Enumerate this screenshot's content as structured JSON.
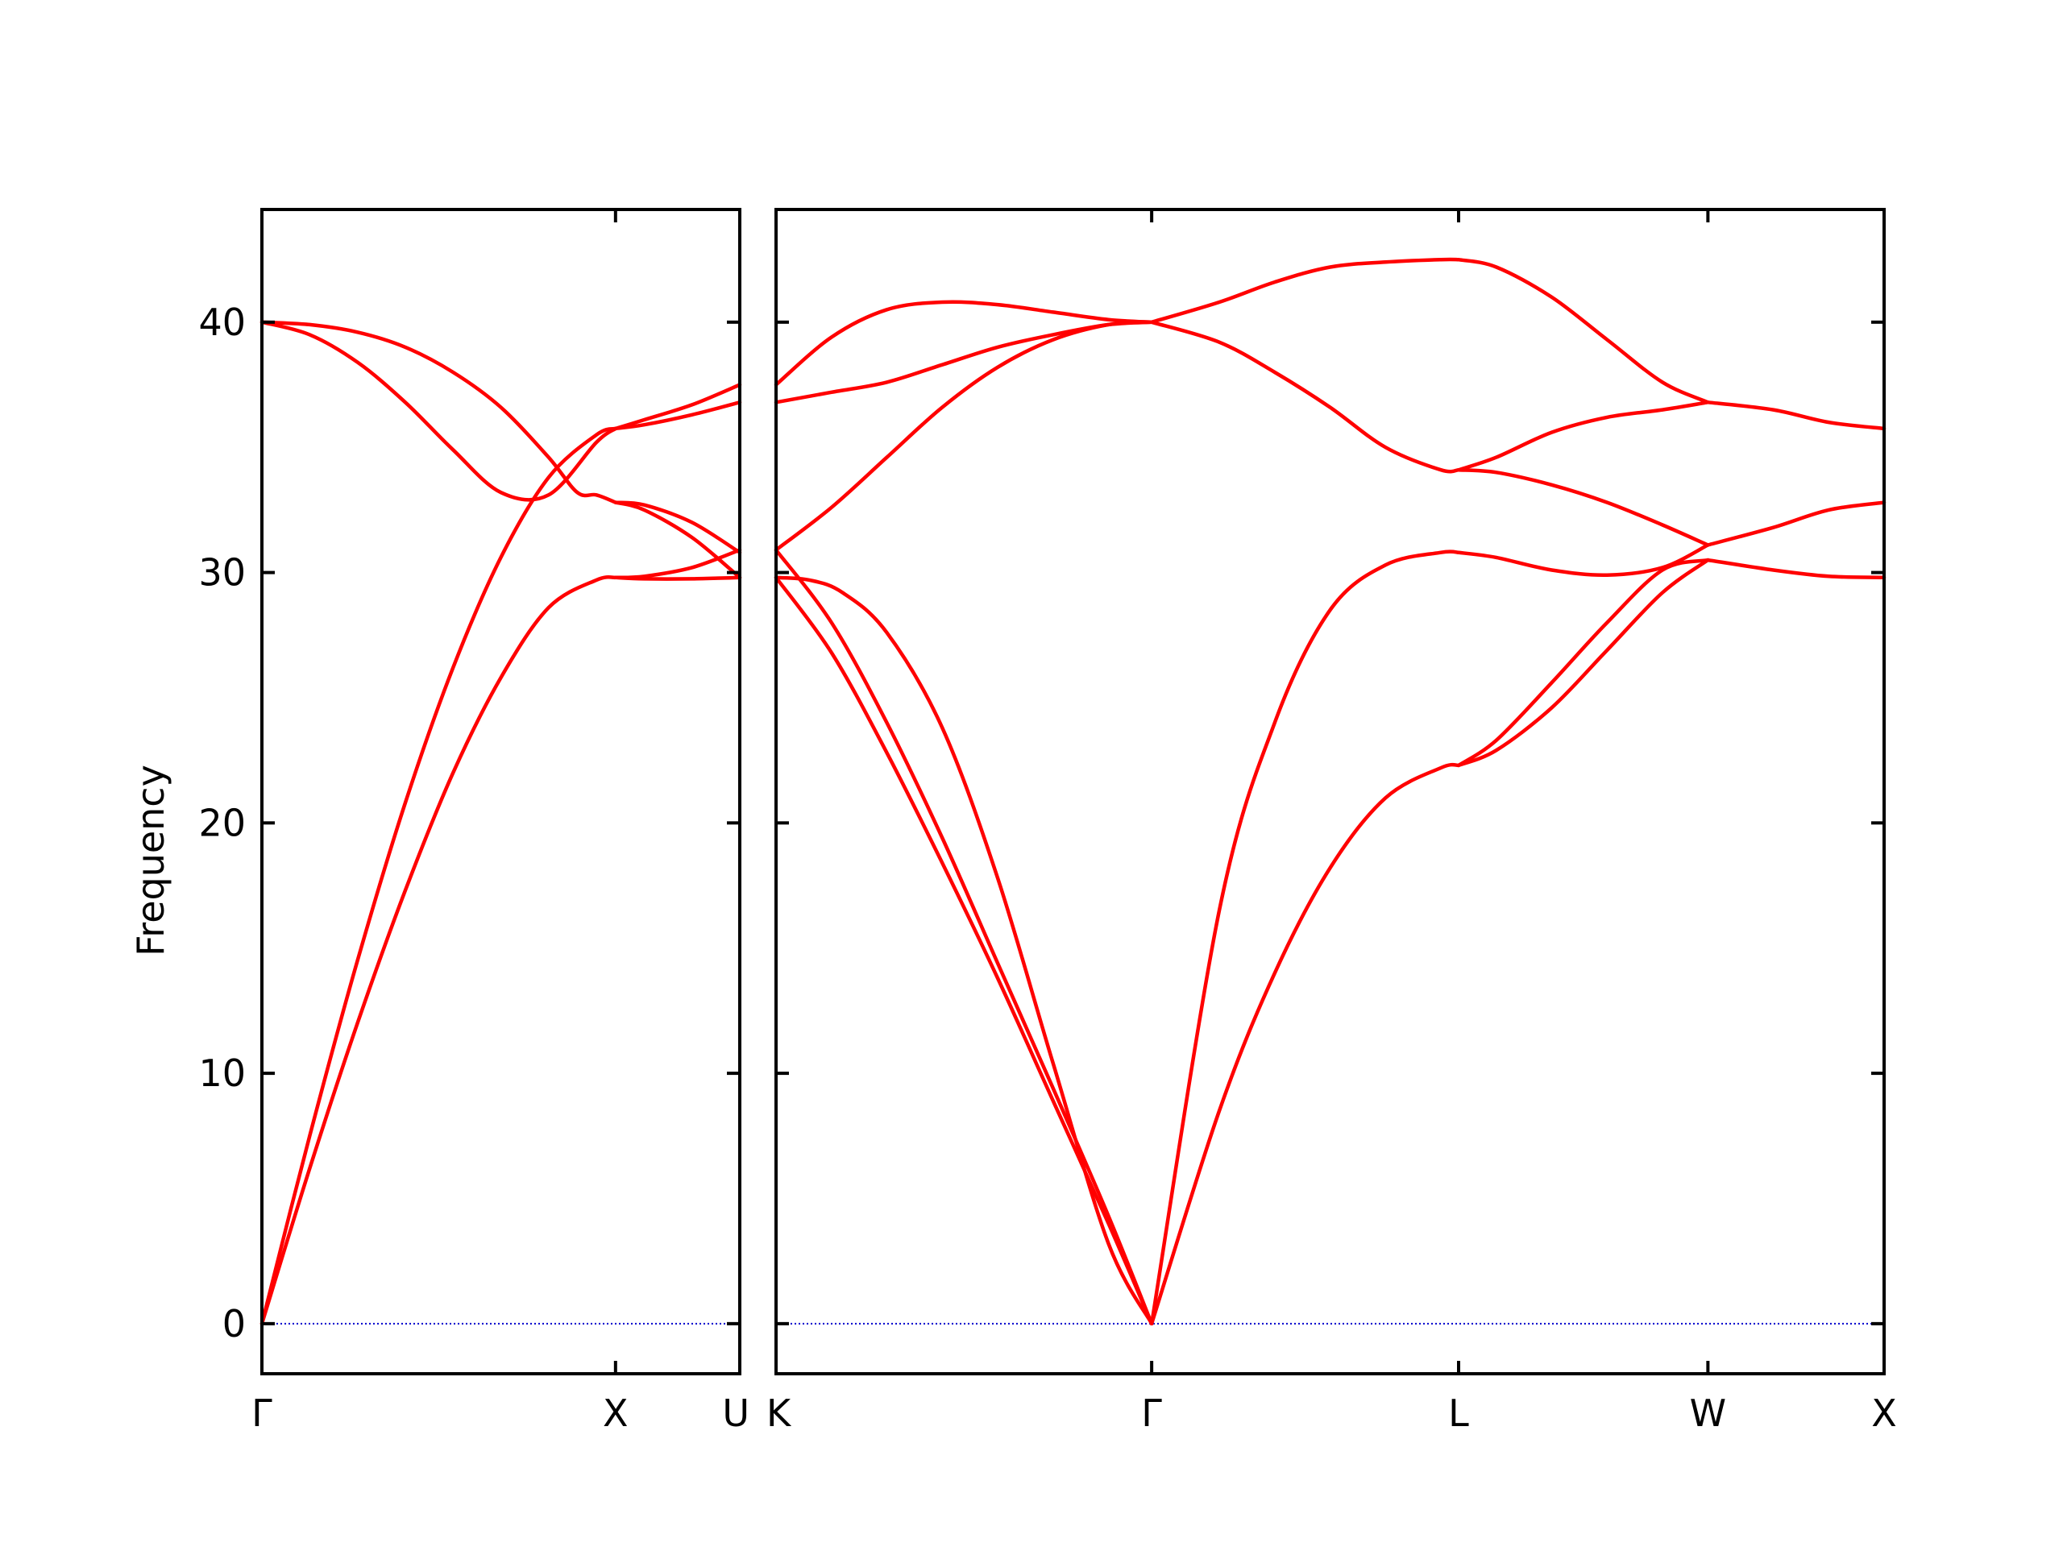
{
  "colors": {
    "band": "#ff0000",
    "zero_line": "#0000cc",
    "axis": "#000000"
  },
  "chart_data": {
    "type": "line",
    "title": "",
    "ylabel": "Frequency",
    "ylim": [
      -2,
      44.5
    ],
    "yticks": [
      0,
      10,
      20,
      30,
      40
    ],
    "grid": false,
    "legend": "none",
    "zero_line": {
      "y": 0,
      "style": "dotted"
    },
    "panels": [
      {
        "name": "panel-left",
        "xlim": [
          0,
          1.0
        ],
        "ticks": [
          {
            "x": 0,
            "label": "Γ"
          },
          {
            "x": 0.74,
            "label": "X"
          },
          {
            "x": 1.0,
            "label": "U"
          }
        ],
        "series": [
          {
            "x": [
              0,
              0.1,
              0.2,
              0.3,
              0.4,
              0.5,
              0.6,
              0.7,
              0.74
            ],
            "values": [
              0,
              7.5,
              14.5,
              20.8,
              26.2,
              30.6,
              33.8,
              35.5,
              35.75
            ]
          },
          {
            "x": [
              0,
              0.1,
              0.2,
              0.3,
              0.4,
              0.5,
              0.6,
              0.7,
              0.74
            ],
            "values": [
              0,
              6.2,
              12.0,
              17.3,
              22.0,
              25.8,
              28.6,
              29.7,
              29.8
            ]
          },
          {
            "x": [
              0,
              0.1,
              0.2,
              0.3,
              0.4,
              0.5,
              0.6,
              0.66,
              0.7,
              0.74
            ],
            "values": [
              40.0,
              39.9,
              39.6,
              39.0,
              38.0,
              36.6,
              34.6,
              33.2,
              33.1,
              32.8
            ]
          },
          {
            "x": [
              0,
              0.1,
              0.2,
              0.3,
              0.4,
              0.5,
              0.6,
              0.7,
              0.74
            ],
            "values": [
              40.0,
              39.5,
              38.4,
              36.8,
              34.9,
              33.2,
              33.1,
              35.2,
              35.75
            ]
          },
          {
            "x": [
              0.74,
              0.8,
              0.9,
              1.0
            ],
            "values": [
              35.75,
              35.9,
              36.3,
              36.8
            ]
          },
          {
            "x": [
              0.74,
              0.8,
              0.9,
              1.0
            ],
            "values": [
              35.75,
              36.1,
              36.7,
              37.5
            ]
          },
          {
            "x": [
              0.74,
              0.8,
              0.9,
              1.0
            ],
            "values": [
              32.8,
              32.7,
              32.0,
              30.8
            ]
          },
          {
            "x": [
              0.74,
              0.8,
              0.9,
              1.0
            ],
            "values": [
              32.8,
              32.5,
              31.4,
              29.8
            ]
          },
          {
            "x": [
              0.74,
              0.8,
              0.9,
              1.0
            ],
            "values": [
              29.8,
              29.85,
              30.2,
              30.9
            ]
          },
          {
            "x": [
              0.74,
              0.8,
              0.9,
              1.0
            ],
            "values": [
              29.8,
              29.75,
              29.75,
              29.8
            ]
          }
        ]
      },
      {
        "name": "panel-right",
        "xlim": [
          0,
          1.0
        ],
        "ticks": [
          {
            "x": 0,
            "label": "K"
          },
          {
            "x": 0.339,
            "label": "Γ"
          },
          {
            "x": 0.616,
            "label": "L"
          },
          {
            "x": 0.841,
            "label": "W"
          },
          {
            "x": 1.0,
            "label": "X"
          }
        ],
        "series": [
          {
            "x": [
              0,
              0.05,
              0.1,
              0.15,
              0.2,
              0.25,
              0.3,
              0.339
            ],
            "values": [
              37.5,
              39.4,
              40.5,
              40.8,
              40.7,
              40.4,
              40.1,
              40.0
            ]
          },
          {
            "x": [
              0,
              0.05,
              0.1,
              0.15,
              0.2,
              0.25,
              0.3,
              0.339
            ],
            "values": [
              36.8,
              37.2,
              37.6,
              38.3,
              39.0,
              39.5,
              39.9,
              40.0
            ]
          },
          {
            "x": [
              0,
              0.05,
              0.1,
              0.15,
              0.2,
              0.25,
              0.3,
              0.339
            ],
            "values": [
              30.9,
              32.6,
              34.6,
              36.6,
              38.2,
              39.3,
              39.9,
              40.0
            ]
          },
          {
            "x": [
              0,
              0.03,
              0.06,
              0.1,
              0.15,
              0.2,
              0.25,
              0.3,
              0.339
            ],
            "values": [
              29.8,
              29.7,
              29.2,
              27.6,
              23.8,
              17.8,
              10.4,
              3.2,
              0
            ]
          },
          {
            "x": [
              0,
              0.05,
              0.1,
              0.15,
              0.2,
              0.25,
              0.3,
              0.339
            ],
            "values": [
              30.9,
              28.0,
              24.0,
              19.4,
              14.4,
              9.4,
              4.3,
              0
            ]
          },
          {
            "x": [
              0,
              0.05,
              0.1,
              0.15,
              0.2,
              0.25,
              0.3,
              0.339
            ],
            "values": [
              29.8,
              26.8,
              22.8,
              18.4,
              13.8,
              8.9,
              4.0,
              0
            ]
          },
          {
            "x": [
              0.339,
              0.4,
              0.45,
              0.5,
              0.55,
              0.6,
              0.616
            ],
            "values": [
              40.0,
              40.8,
              41.6,
              42.2,
              42.4,
              42.5,
              42.5
            ]
          },
          {
            "x": [
              0.339,
              0.4,
              0.45,
              0.5,
              0.55,
              0.6,
              0.616
            ],
            "values": [
              40.0,
              39.2,
              38.0,
              36.6,
              35.0,
              34.1,
              34.1
            ]
          },
          {
            "x": [
              0.339,
              0.4,
              0.45,
              0.5,
              0.55,
              0.6,
              0.616
            ],
            "values": [
              0,
              16.5,
              24.0,
              28.5,
              30.3,
              30.8,
              30.8
            ]
          },
          {
            "x": [
              0.339,
              0.4,
              0.45,
              0.5,
              0.55,
              0.6,
              0.616
            ],
            "values": [
              0,
              8.5,
              14.0,
              18.2,
              21.0,
              22.2,
              22.3
            ]
          },
          {
            "x": [
              0.616,
              0.65,
              0.7,
              0.75,
              0.8,
              0.841
            ],
            "values": [
              42.5,
              42.2,
              41.0,
              39.3,
              37.6,
              36.8
            ]
          },
          {
            "x": [
              0.616,
              0.65,
              0.7,
              0.75,
              0.8,
              0.841
            ],
            "values": [
              34.1,
              34.6,
              35.6,
              36.2,
              36.5,
              36.8
            ]
          },
          {
            "x": [
              0.616,
              0.65,
              0.7,
              0.75,
              0.8,
              0.841
            ],
            "values": [
              34.1,
              34.0,
              33.5,
              32.8,
              31.9,
              31.1
            ]
          },
          {
            "x": [
              0.616,
              0.65,
              0.7,
              0.75,
              0.8,
              0.841
            ],
            "values": [
              30.8,
              30.6,
              30.1,
              29.9,
              30.2,
              31.1
            ]
          },
          {
            "x": [
              0.616,
              0.65,
              0.7,
              0.75,
              0.8,
              0.841
            ],
            "values": [
              22.3,
              22.9,
              24.6,
              26.9,
              29.2,
              30.5
            ]
          },
          {
            "x": [
              0.616,
              0.65,
              0.7,
              0.75,
              0.8,
              0.841
            ],
            "values": [
              22.3,
              23.3,
              25.6,
              28.0,
              30.1,
              30.5
            ]
          },
          {
            "x": [
              0.841,
              0.9,
              0.95,
              1.0
            ],
            "values": [
              36.8,
              36.5,
              36.0,
              35.75
            ]
          },
          {
            "x": [
              0.841,
              0.9,
              0.95,
              1.0
            ],
            "values": [
              31.1,
              31.8,
              32.5,
              32.8
            ]
          },
          {
            "x": [
              0.841,
              0.9,
              0.95,
              1.0
            ],
            "values": [
              30.5,
              30.1,
              29.85,
              29.8
            ]
          }
        ]
      }
    ]
  }
}
